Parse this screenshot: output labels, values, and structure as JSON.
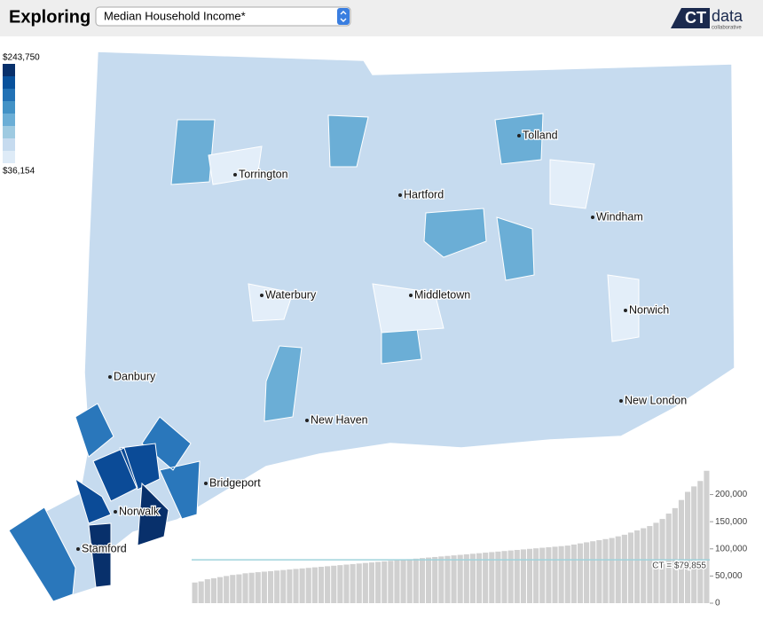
{
  "header": {
    "title": "Exploring",
    "indicator": "Median Household Income*",
    "logo_main": "CT",
    "logo_side": "data",
    "logo_sub": "collaborative"
  },
  "legend": {
    "max_label": "$243,750",
    "min_label": "$36,154",
    "colors": [
      "#08306b",
      "#08519c",
      "#2171b5",
      "#4292c6",
      "#6baed6",
      "#9ecae1",
      "#c6dbef",
      "#deebf7"
    ]
  },
  "map": {
    "cities": [
      "Torrington",
      "Hartford",
      "Tolland",
      "Windham",
      "Waterbury",
      "Middletown",
      "Norwich",
      "Danbury",
      "New Haven",
      "New London",
      "Bridgeport",
      "Norwalk",
      "Stamford"
    ]
  },
  "chart_data": {
    "type": "bar",
    "color": "#d0d0d0",
    "values": [
      38000,
      40000,
      44000,
      46000,
      48000,
      50000,
      52000,
      53000,
      55000,
      56000,
      57000,
      58000,
      59000,
      60000,
      61000,
      62000,
      63000,
      64000,
      65000,
      66000,
      67000,
      68000,
      69000,
      70000,
      71000,
      72000,
      73000,
      74000,
      75000,
      76000,
      77000,
      78000,
      79000,
      80000,
      81000,
      82000,
      83000,
      84000,
      85000,
      86000,
      87000,
      88000,
      89000,
      90000,
      91000,
      92000,
      93000,
      94000,
      95000,
      96000,
      97000,
      98000,
      99000,
      100000,
      101000,
      102000,
      103000,
      104000,
      105000,
      106000,
      108000,
      110000,
      112000,
      114000,
      116000,
      118000,
      120000,
      123000,
      126000,
      130000,
      134000,
      138000,
      142000,
      148000,
      155000,
      165000,
      175000,
      190000,
      205000,
      215000,
      225000,
      243750
    ],
    "ylim": [
      0,
      245000
    ],
    "yticks": [
      0,
      {
        "value": 50000,
        "label": "50,000"
      },
      {
        "value": 100000,
        "label": "100,000"
      },
      {
        "value": 150000,
        "label": "150,000"
      },
      {
        "value": 200000,
        "label": "200,000"
      }
    ],
    "reference": {
      "value": 79855,
      "label": "CT = $79,855",
      "color": "#9fd3dc"
    }
  }
}
